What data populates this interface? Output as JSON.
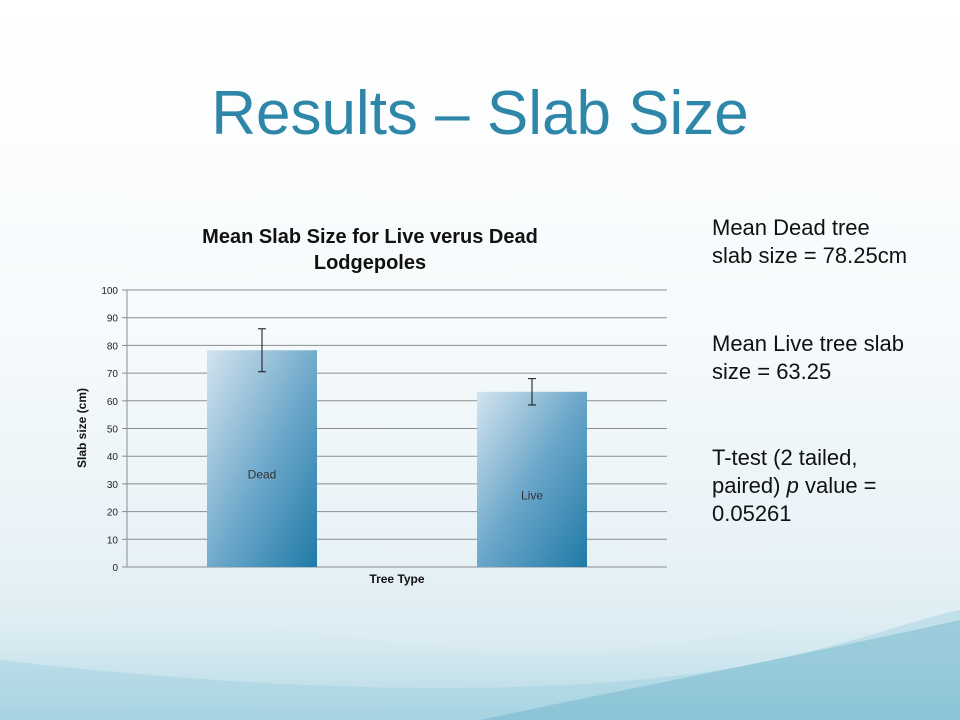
{
  "slide": {
    "title": "Results – Slab Size",
    "notes": {
      "dead": "Mean Dead tree slab size = 78.25cm",
      "live": "Mean Live tree slab size = 63.25",
      "ttest_prefix": "T-test (2 tailed, paired) ",
      "ttest_italic": "p",
      "ttest_suffix": " value = 0.05261"
    },
    "colors": {
      "title": "#2e86a8",
      "bar_dark": "#2a7fab",
      "bar_light": "#c9dce9",
      "grid": "#8c8c8c"
    }
  },
  "chart_data": {
    "type": "bar",
    "title": "Mean Slab Size for Live verus Dead Lodgepoles",
    "xlabel": "Tree Type",
    "ylabel": "Slab size (cm)",
    "ylim": [
      0,
      100
    ],
    "yticks": [
      0,
      10,
      20,
      30,
      40,
      50,
      60,
      70,
      80,
      90,
      100
    ],
    "grid": true,
    "legend": "none",
    "categories": [
      "Dead",
      "Live"
    ],
    "values": [
      78.25,
      63.25
    ],
    "error_low": [
      70.5,
      58.5
    ],
    "error_high": [
      86,
      68
    ]
  }
}
